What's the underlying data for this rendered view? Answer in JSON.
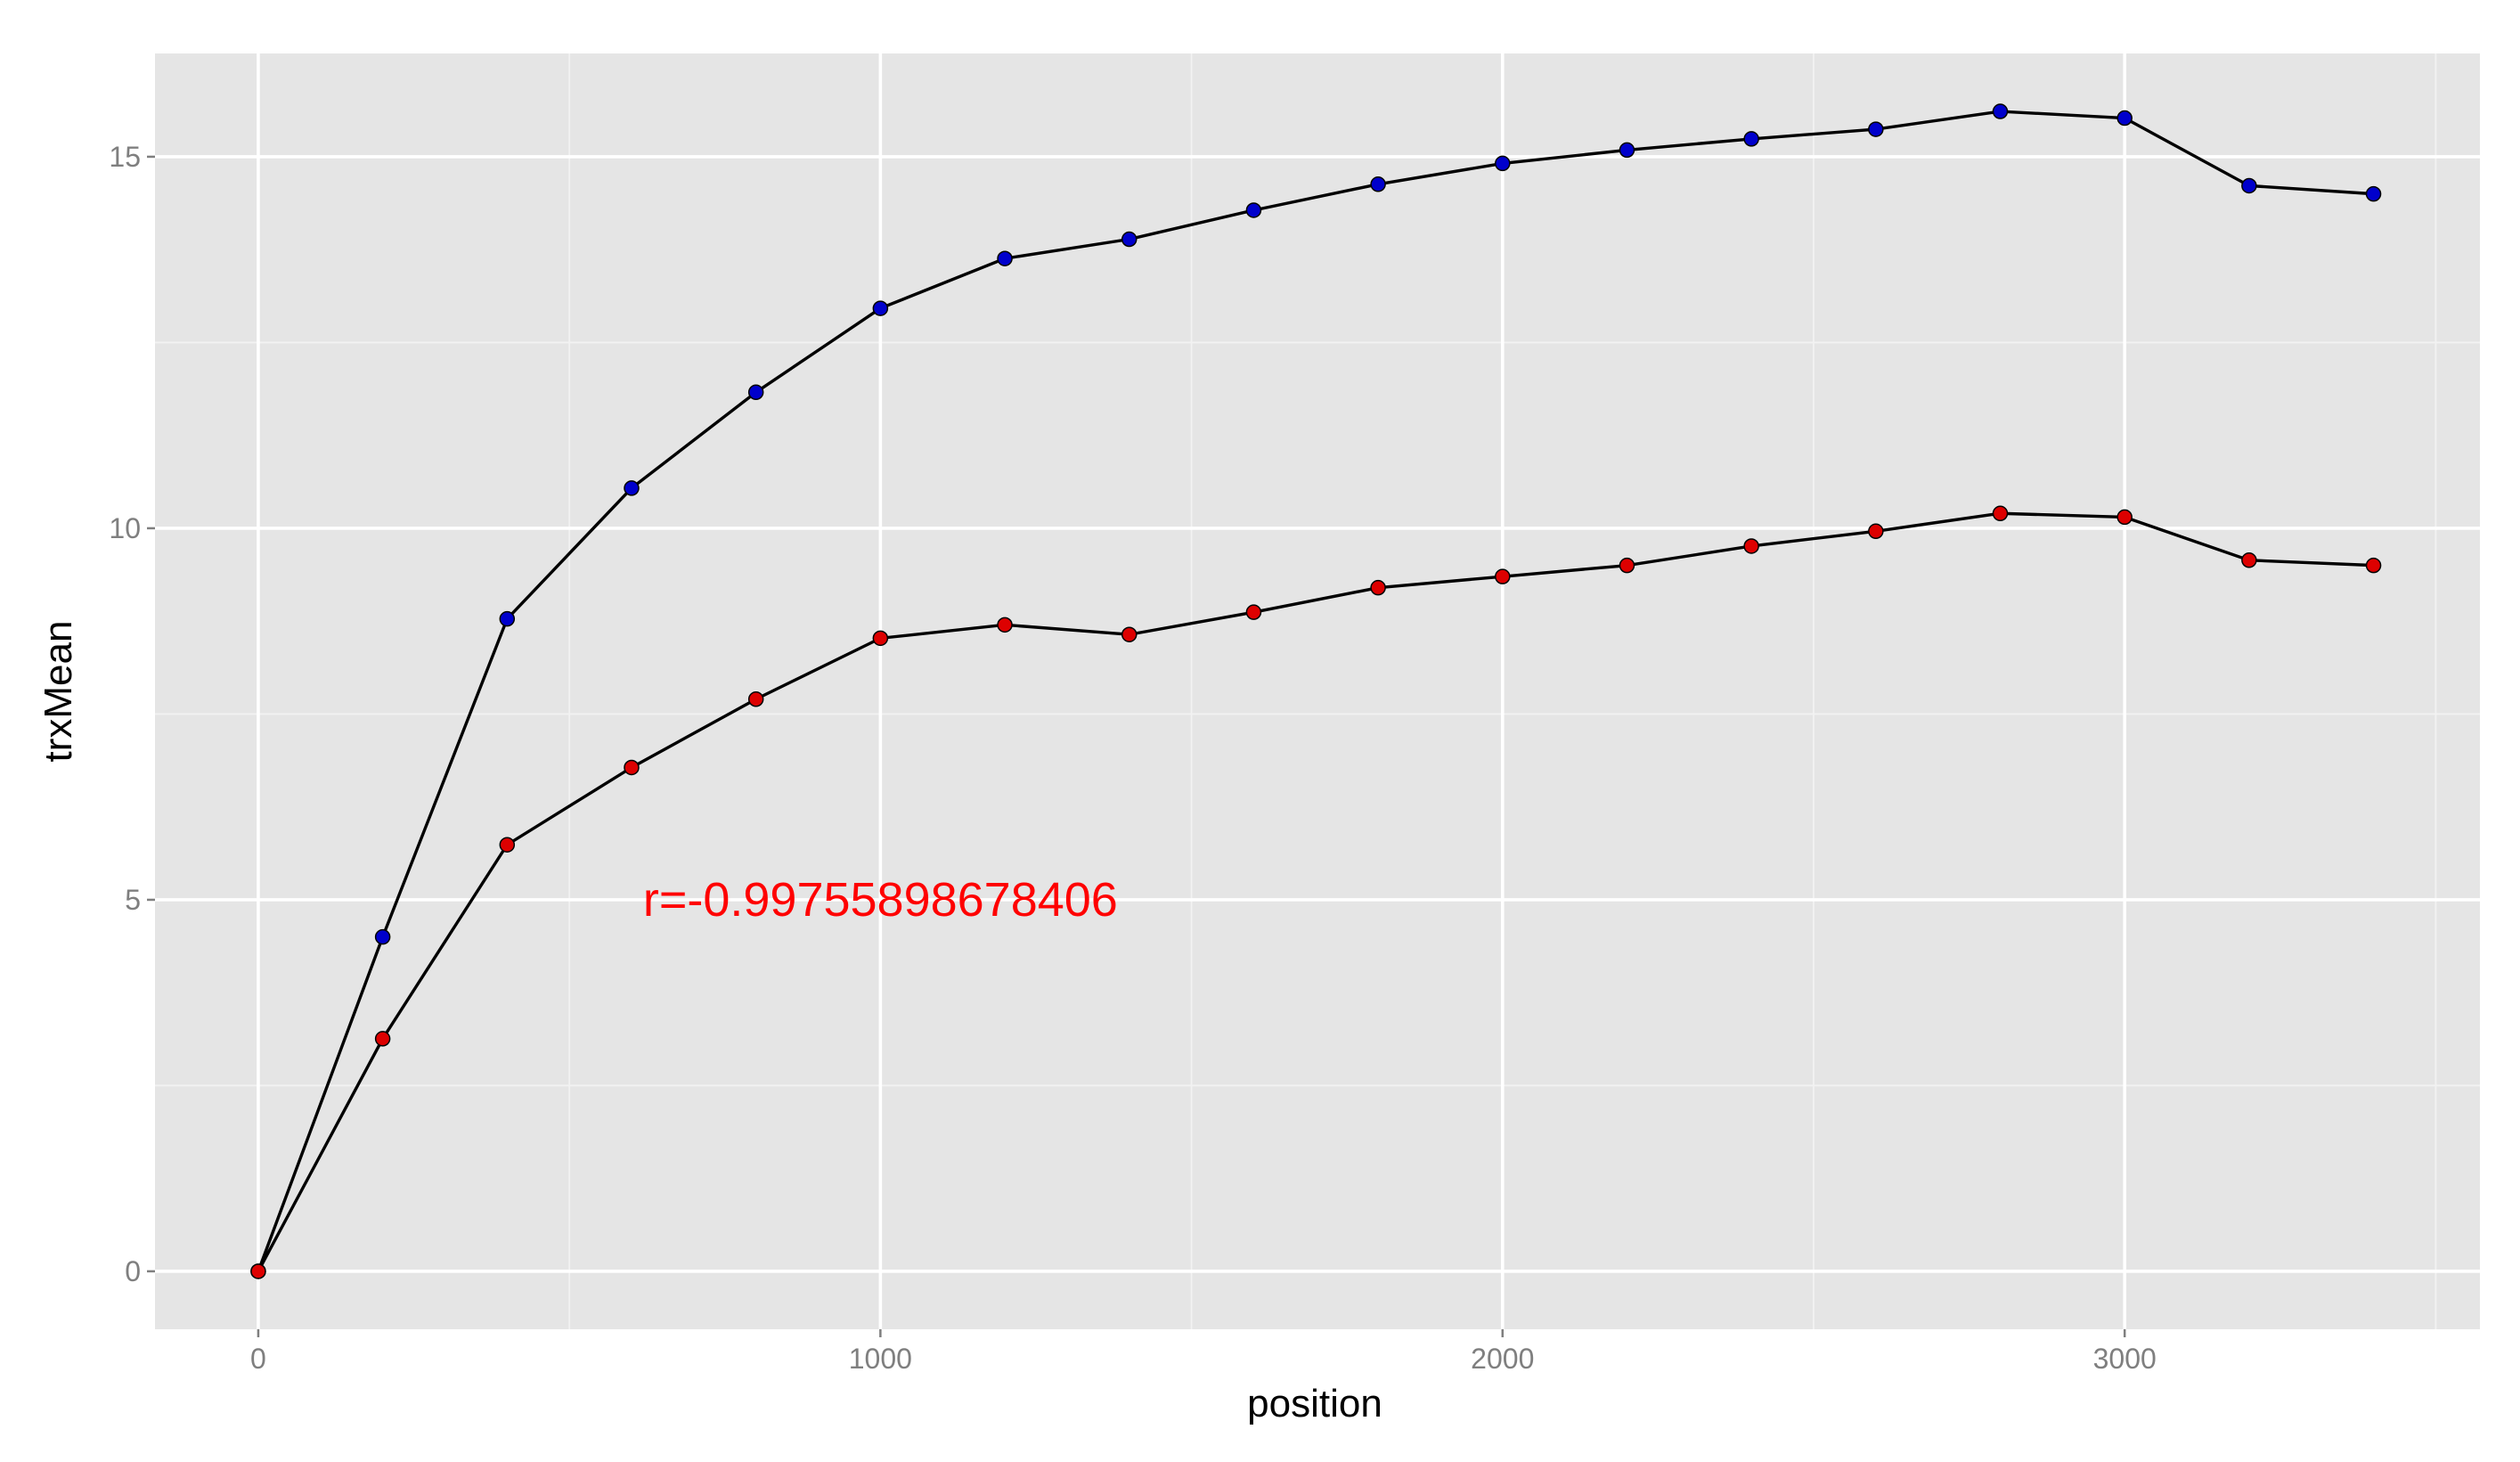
{
  "chart_data": {
    "type": "line",
    "x_label": "position",
    "y_label": "trxMean",
    "x": [
      0,
      200,
      400,
      600,
      800,
      1000,
      1200,
      1400,
      1600,
      1800,
      2000,
      2200,
      2400,
      2600,
      2800,
      3000,
      3200,
      3400
    ],
    "series": [
      {
        "color": "#0000cc",
        "line_color": "#000000",
        "values": [
          0,
          4.5,
          8.78,
          10.54,
          11.83,
          12.96,
          13.63,
          13.89,
          14.28,
          14.63,
          14.91,
          15.09,
          15.24,
          15.37,
          15.61,
          15.52,
          14.61,
          14.5
        ]
      },
      {
        "color": "#dd0000",
        "line_color": "#000000",
        "values": [
          0,
          3.13,
          5.74,
          6.78,
          7.7,
          8.52,
          8.7,
          8.57,
          8.87,
          9.2,
          9.35,
          9.5,
          9.76,
          9.96,
          10.2,
          10.15,
          9.57,
          9.5
        ]
      }
    ],
    "annotation": {
      "text": "r=-0.99755898678406",
      "x": 1000,
      "y": 5,
      "color": "#ff0000"
    },
    "xlim": [
      -166,
      3571
    ],
    "ylim": [
      -0.78,
      16.39
    ],
    "xticks": [
      0,
      1000,
      2000,
      3000
    ],
    "yticks": [
      0,
      5,
      10,
      15
    ],
    "grid": true,
    "minor_grid": true,
    "panel_color": "#e5e5e5"
  }
}
